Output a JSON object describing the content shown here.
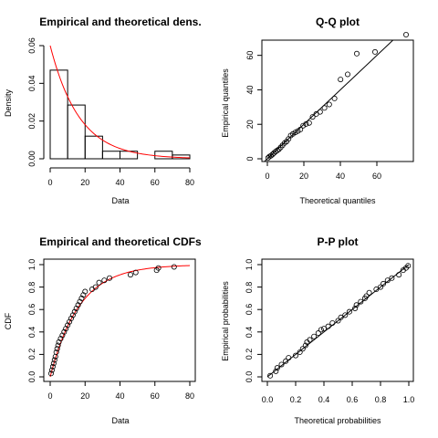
{
  "theme": {
    "curve_color": "#ff0000",
    "stroke_color": "#000000"
  },
  "chart_data": [
    {
      "type": "bar",
      "id": "density",
      "title": "Empirical and theoretical dens.",
      "xlabel": "Data",
      "ylabel": "Density",
      "xlim": [
        0,
        80
      ],
      "ylim": [
        0,
        0.06
      ],
      "xticks": [
        0,
        20,
        40,
        60,
        80
      ],
      "yticks": [
        0.0,
        0.02,
        0.04,
        0.06
      ],
      "ytick_labels": [
        "0.00",
        "0.02",
        "0.04",
        "0.06"
      ],
      "bins": [
        [
          0,
          10
        ],
        [
          10,
          20
        ],
        [
          20,
          30
        ],
        [
          30,
          40
        ],
        [
          40,
          50
        ],
        [
          50,
          60
        ],
        [
          60,
          70
        ],
        [
          70,
          80
        ]
      ],
      "values": [
        0.047,
        0.0285,
        0.012,
        0.004,
        0.004,
        0.0,
        0.004,
        0.002
      ],
      "curve": {
        "type": "exponential",
        "rate": 0.06,
        "x_range": [
          0,
          80
        ]
      },
      "grid": false
    },
    {
      "type": "scatter",
      "id": "qq",
      "title": "Q-Q plot",
      "xlabel": "Theoretical quantiles",
      "ylabel": "Empirical quantiles",
      "xlim": [
        0,
        80
      ],
      "ylim": [
        0,
        72
      ],
      "xticks": [
        0,
        20,
        40,
        60
      ],
      "yticks": [
        0,
        20,
        40,
        60
      ],
      "reference_line": [
        [
          -5,
          -5
        ],
        [
          80,
          80
        ]
      ],
      "points": [
        [
          0.4,
          0.5
        ],
        [
          1.2,
          1.3
        ],
        [
          2,
          1.8
        ],
        [
          2.8,
          2.5
        ],
        [
          3.6,
          3.3
        ],
        [
          4.5,
          4.2
        ],
        [
          5.4,
          4.8
        ],
        [
          6.3,
          5.5
        ],
        [
          7.3,
          6.6
        ],
        [
          8.3,
          7.8
        ],
        [
          9.4,
          9.1
        ],
        [
          10.5,
          10
        ],
        [
          11.6,
          11.5
        ],
        [
          12.8,
          13.5
        ],
        [
          14,
          14.4
        ],
        [
          15.3,
          15.3
        ],
        [
          16.7,
          16.1
        ],
        [
          18.1,
          17
        ],
        [
          19.6,
          19.2
        ],
        [
          21.2,
          20.2
        ],
        [
          22.9,
          20.8
        ],
        [
          24.8,
          24.3
        ],
        [
          26.8,
          26
        ],
        [
          28.9,
          27.2
        ],
        [
          31.3,
          29.5
        ],
        [
          33.9,
          31.5
        ],
        [
          36.8,
          35
        ],
        [
          40.1,
          46
        ],
        [
          44,
          49
        ],
        [
          49,
          61
        ],
        [
          59,
          62
        ],
        [
          76,
          72
        ]
      ],
      "grid": false
    },
    {
      "type": "scatter",
      "id": "cdf",
      "title": "Empirical and theoretical CDFs",
      "xlabel": "Data",
      "ylabel": "CDF",
      "xlim": [
        0,
        80
      ],
      "ylim": [
        0,
        1
      ],
      "xticks": [
        0,
        20,
        40,
        60,
        80
      ],
      "yticks": [
        0.0,
        0.2,
        0.4,
        0.6,
        0.8,
        1.0
      ],
      "ytick_labels": [
        "0.0",
        "0.2",
        "0.4",
        "0.6",
        "0.8",
        "1.0"
      ],
      "points": [
        [
          0.5,
          0.03
        ],
        [
          1,
          0.06
        ],
        [
          1.5,
          0.09
        ],
        [
          2,
          0.12
        ],
        [
          2.5,
          0.15
        ],
        [
          3,
          0.18
        ],
        [
          3.5,
          0.22
        ],
        [
          4,
          0.25
        ],
        [
          4.5,
          0.28
        ],
        [
          5,
          0.31
        ],
        [
          6,
          0.34
        ],
        [
          7,
          0.37
        ],
        [
          8,
          0.4
        ],
        [
          9,
          0.43
        ],
        [
          10,
          0.46
        ],
        [
          11,
          0.49
        ],
        [
          12,
          0.52
        ],
        [
          13,
          0.55
        ],
        [
          14,
          0.58
        ],
        [
          15,
          0.61
        ],
        [
          16,
          0.64
        ],
        [
          17,
          0.67
        ],
        [
          18,
          0.7
        ],
        [
          19,
          0.73
        ],
        [
          20,
          0.76
        ],
        [
          24,
          0.78
        ],
        [
          26,
          0.8
        ],
        [
          28,
          0.84
        ],
        [
          31,
          0.86
        ],
        [
          34,
          0.88
        ],
        [
          46,
          0.91
        ],
        [
          49,
          0.93
        ],
        [
          61,
          0.95
        ],
        [
          62,
          0.97
        ],
        [
          71,
          0.98
        ]
      ],
      "curve": {
        "type": "exponential_cdf",
        "rate": 0.06,
        "x_range": [
          0,
          80
        ]
      },
      "grid": false
    },
    {
      "type": "scatter",
      "id": "pp",
      "title": "P-P plot",
      "xlabel": "Theoretical probabilities",
      "ylabel": "Empirical probabilities",
      "xlim": [
        0,
        1
      ],
      "ylim": [
        0,
        1
      ],
      "xticks": [
        0.0,
        0.2,
        0.4,
        0.6,
        0.8,
        1.0
      ],
      "yticks": [
        0.0,
        0.2,
        0.4,
        0.6,
        0.8,
        1.0
      ],
      "xtick_labels": [
        "0.0",
        "0.2",
        "0.4",
        "0.6",
        "0.8",
        "1.0"
      ],
      "ytick_labels": [
        "0.0",
        "0.2",
        "0.4",
        "0.6",
        "0.8",
        "1.0"
      ],
      "reference_line": [
        [
          0,
          0
        ],
        [
          1,
          1
        ]
      ],
      "points": [
        [
          0.02,
          0.01
        ],
        [
          0.06,
          0.05
        ],
        [
          0.07,
          0.08
        ],
        [
          0.1,
          0.11
        ],
        [
          0.13,
          0.14
        ],
        [
          0.15,
          0.17
        ],
        [
          0.2,
          0.19
        ],
        [
          0.23,
          0.22
        ],
        [
          0.25,
          0.25
        ],
        [
          0.27,
          0.28
        ],
        [
          0.28,
          0.31
        ],
        [
          0.3,
          0.33
        ],
        [
          0.33,
          0.36
        ],
        [
          0.36,
          0.39
        ],
        [
          0.38,
          0.42
        ],
        [
          0.4,
          0.43
        ],
        [
          0.43,
          0.45
        ],
        [
          0.46,
          0.48
        ],
        [
          0.5,
          0.5
        ],
        [
          0.52,
          0.53
        ],
        [
          0.55,
          0.55
        ],
        [
          0.58,
          0.58
        ],
        [
          0.62,
          0.61
        ],
        [
          0.63,
          0.64
        ],
        [
          0.66,
          0.67
        ],
        [
          0.69,
          0.7
        ],
        [
          0.7,
          0.72
        ],
        [
          0.72,
          0.75
        ],
        [
          0.77,
          0.78
        ],
        [
          0.8,
          0.8
        ],
        [
          0.82,
          0.83
        ],
        [
          0.85,
          0.86
        ],
        [
          0.88,
          0.88
        ],
        [
          0.93,
          0.91
        ],
        [
          0.96,
          0.95
        ],
        [
          0.98,
          0.97
        ],
        [
          0.995,
          0.99
        ]
      ],
      "grid": false
    }
  ]
}
